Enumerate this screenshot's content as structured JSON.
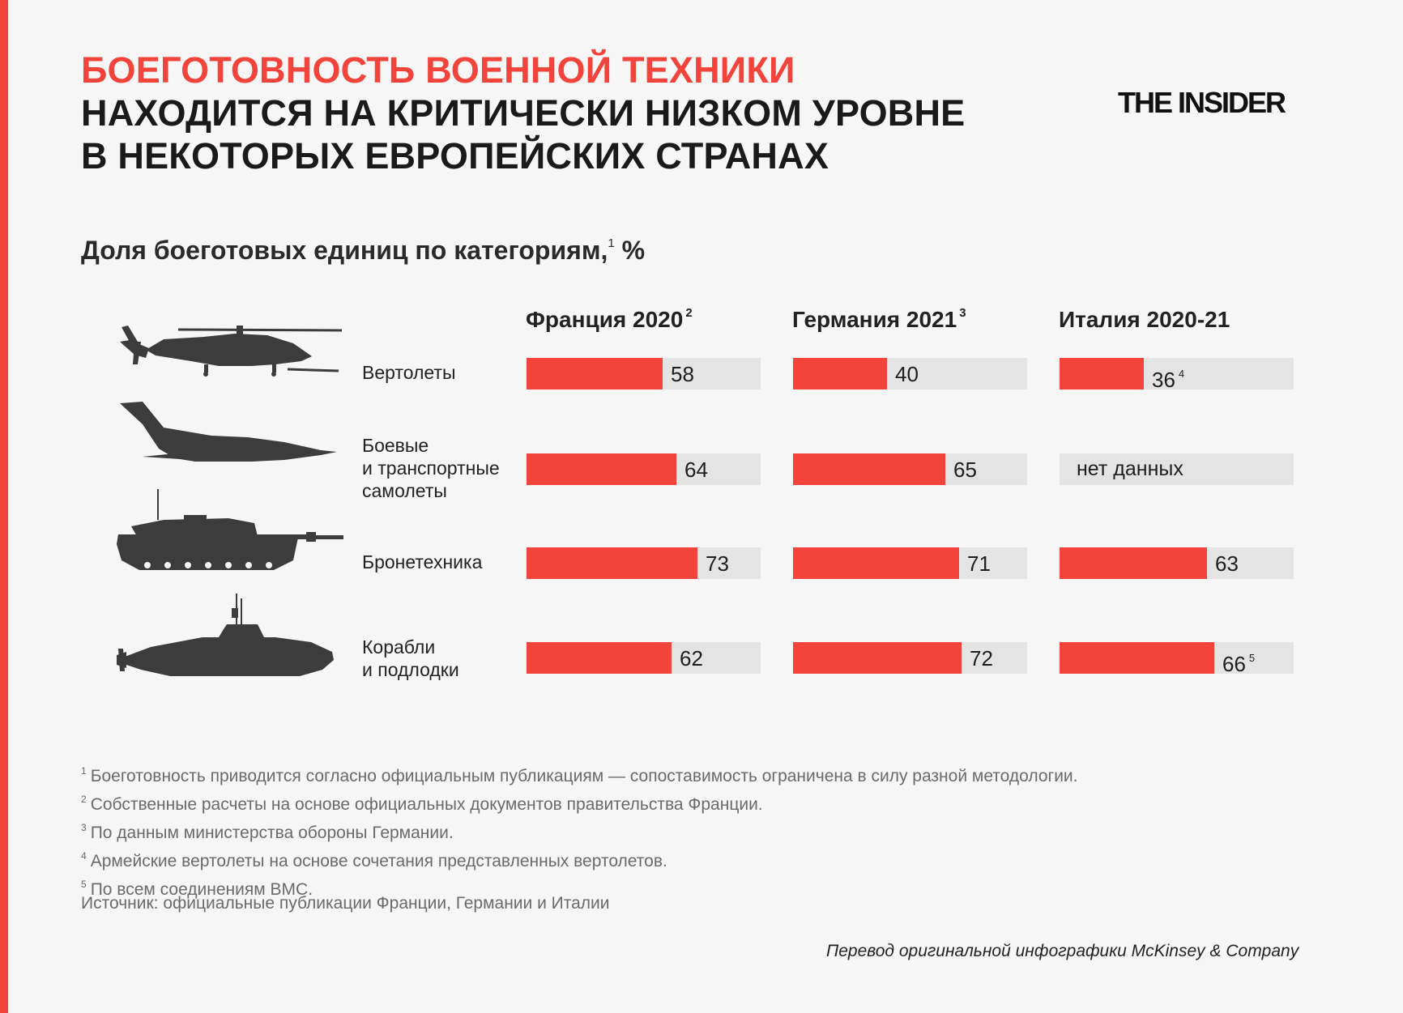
{
  "title": {
    "line1": "БОЕГОТОВНОСТЬ ВОЕННОЙ ТЕХНИКИ",
    "line2": "НАХОДИТСЯ НА КРИТИЧЕСКИ НИЗКОМ УРОВНЕ",
    "line3": "В НЕКОТОРЫХ ЕВРОПЕЙСКИХ СТРАНАХ"
  },
  "logo": "THE INSIDER",
  "subtitle": {
    "text": "Доля боеготовых единиц по категориям,",
    "sup": "1",
    "unit": "%"
  },
  "colors": {
    "accent": "#f2443a",
    "track": "#e4e4e4",
    "icon": "#3c3c3c"
  },
  "chart_data": {
    "type": "bar",
    "orientation": "horizontal",
    "xlim": [
      0,
      100
    ],
    "categories": [
      {
        "lines": [
          "Вертолеты"
        ],
        "icon": "helicopter-icon"
      },
      {
        "lines": [
          "Боевые",
          "и транспортные",
          "самолеты"
        ],
        "icon": "jet-aircraft-icon"
      },
      {
        "lines": [
          "Бронетехника"
        ],
        "icon": "tank-icon"
      },
      {
        "lines": [
          "Корабли",
          "и подлодки"
        ],
        "icon": "submarine-icon"
      }
    ],
    "series": [
      {
        "name": "Франция 2020",
        "note": "2",
        "values": [
          58,
          64,
          73,
          62
        ],
        "labels": [
          "58",
          "64",
          "73",
          "62"
        ],
        "value_notes": [
          "",
          "",
          "",
          ""
        ]
      },
      {
        "name": "Германия 2021",
        "note": "3",
        "values": [
          40,
          65,
          71,
          72
        ],
        "labels": [
          "40",
          "65",
          "71",
          "72"
        ],
        "value_notes": [
          "",
          "",
          "",
          ""
        ]
      },
      {
        "name": "Италия 2020-21",
        "note": "",
        "values": [
          36,
          null,
          63,
          66
        ],
        "labels": [
          "36",
          "нет данных",
          "63",
          "66"
        ],
        "value_notes": [
          "4",
          "",
          "",
          "5"
        ]
      }
    ]
  },
  "footnotes": [
    {
      "num": "1",
      "text": "Боеготовность приводится согласно официальным публикациям — сопоставимость ограничена в силу разной методологии."
    },
    {
      "num": "2",
      "text": "Собственные расчеты на основе официальных документов правительства Франции."
    },
    {
      "num": "3",
      "text": "По данным министерства обороны Германии."
    },
    {
      "num": "4",
      "text": "Армейские вертолеты на основе сочетания представленных вертолетов."
    },
    {
      "num": "5",
      "text": "По всем соединениям ВМС."
    }
  ],
  "source": "Источник: официальные публикации Франции, Германии и Италии",
  "credit": "Перевод оригинальной инфографики McKinsey & Company"
}
